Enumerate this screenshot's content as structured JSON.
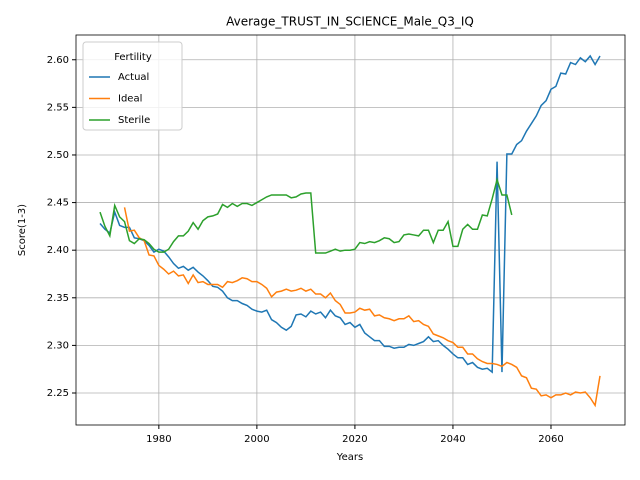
{
  "chart_data": {
    "type": "line",
    "title": "Average_TRUST_IN_SCIENCE_Male_Q3_IQ",
    "x_label": "Years",
    "y_label": "Score(1-3)",
    "x": [
      1968,
      1969,
      1970,
      1971,
      1972,
      1973,
      1974,
      1975,
      1976,
      1977,
      1978,
      1979,
      1980,
      1981,
      1982,
      1983,
      1984,
      1985,
      1986,
      1987,
      1988,
      1989,
      1990,
      1991,
      1992,
      1993,
      1994,
      1995,
      1996,
      1997,
      1998,
      1999,
      2000,
      2001,
      2002,
      2003,
      2004,
      2005,
      2006,
      2007,
      2008,
      2009,
      2010,
      2011,
      2012,
      2013,
      2014,
      2015,
      2016,
      2017,
      2018,
      2019,
      2020,
      2021,
      2022,
      2023,
      2024,
      2025,
      2026,
      2027,
      2028,
      2029,
      2030,
      2031,
      2032,
      2033,
      2034,
      2035,
      2036,
      2037,
      2038,
      2039,
      2040,
      2041,
      2042,
      2043,
      2044,
      2045,
      2046,
      2047,
      2048,
      2049,
      2050,
      2051,
      2052,
      2053,
      2054,
      2055,
      2056,
      2057,
      2058,
      2059,
      2060,
      2061,
      2062,
      2063,
      2064,
      2065,
      2066,
      2067,
      2068,
      2069,
      2070
    ],
    "series": [
      {
        "name": "Actual",
        "color": "#1f77b4",
        "values": [
          2.428,
          2.422,
          2.418,
          2.44,
          2.426,
          2.424,
          2.424,
          2.413,
          2.412,
          2.41,
          2.405,
          2.398,
          2.401,
          2.399,
          2.393,
          2.386,
          2.381,
          2.383,
          2.379,
          2.382,
          2.377,
          2.373,
          2.368,
          2.362,
          2.361,
          2.357,
          2.35,
          2.347,
          2.347,
          2.344,
          2.342,
          2.338,
          2.336,
          2.335,
          2.337,
          2.327,
          2.324,
          2.319,
          2.316,
          2.32,
          2.332,
          2.333,
          2.33,
          2.336,
          2.333,
          2.335,
          2.329,
          2.337,
          2.331,
          2.329,
          2.322,
          2.324,
          2.319,
          2.322,
          2.313,
          2.309,
          2.305,
          2.305,
          2.299,
          2.299,
          2.297,
          2.298,
          2.298,
          2.301,
          2.3,
          2.302,
          2.304,
          2.309,
          2.304,
          2.305,
          2.3,
          2.296,
          2.291,
          2.287,
          2.287,
          2.28,
          2.282,
          2.277,
          2.275,
          2.276,
          2.272,
          2.493,
          2.272,
          2.501,
          2.501,
          2.511,
          2.515,
          2.525,
          2.533,
          2.541,
          2.552,
          2.557,
          2.569,
          2.572,
          2.586,
          2.585,
          2.597,
          2.595,
          2.602,
          2.598,
          2.604,
          2.595,
          2.604
        ]
      },
      {
        "name": "Ideal",
        "color": "#ff7f0e",
        "values": [
          null,
          null,
          null,
          null,
          null,
          2.445,
          2.42,
          2.421,
          2.413,
          2.41,
          2.395,
          2.394,
          2.384,
          2.38,
          2.375,
          2.378,
          2.373,
          2.374,
          2.365,
          2.374,
          2.366,
          2.367,
          2.364,
          2.364,
          2.364,
          2.361,
          2.367,
          2.366,
          2.368,
          2.371,
          2.37,
          2.367,
          2.367,
          2.364,
          2.36,
          2.351,
          2.356,
          2.357,
          2.359,
          2.357,
          2.358,
          2.36,
          2.357,
          2.359,
          2.354,
          2.354,
          2.35,
          2.355,
          2.347,
          2.343,
          2.334,
          2.334,
          2.335,
          2.339,
          2.337,
          2.338,
          2.331,
          2.332,
          2.329,
          2.328,
          2.326,
          2.328,
          2.328,
          2.331,
          2.325,
          2.326,
          2.322,
          2.32,
          2.312,
          2.31,
          2.308,
          2.305,
          2.303,
          2.298,
          2.298,
          2.291,
          2.291,
          2.286,
          2.283,
          2.281,
          2.281,
          2.28,
          2.278,
          2.282,
          2.28,
          2.277,
          2.268,
          2.266,
          2.255,
          2.254,
          2.247,
          2.248,
          2.245,
          2.248,
          2.248,
          2.25,
          2.248,
          2.251,
          2.25,
          2.251,
          2.245,
          2.237,
          2.268
        ]
      },
      {
        "name": "Sterile",
        "color": "#2ca02c",
        "values": [
          2.44,
          2.425,
          2.415,
          2.447,
          2.435,
          2.43,
          2.41,
          2.407,
          2.412,
          2.411,
          2.407,
          2.401,
          2.398,
          2.398,
          2.401,
          2.409,
          2.415,
          2.415,
          2.42,
          2.429,
          2.422,
          2.431,
          2.435,
          2.436,
          2.438,
          2.448,
          2.445,
          2.449,
          2.446,
          2.449,
          2.449,
          2.447,
          2.45,
          2.453,
          2.456,
          2.458,
          2.458,
          2.458,
          2.458,
          2.455,
          2.456,
          2.459,
          2.46,
          2.46,
          2.397,
          2.397,
          2.397,
          2.399,
          2.401,
          2.399,
          2.4,
          2.4,
          2.401,
          2.408,
          2.407,
          2.409,
          2.408,
          2.41,
          2.413,
          2.412,
          2.408,
          2.409,
          2.416,
          2.417,
          2.416,
          2.415,
          2.421,
          2.421,
          2.408,
          2.421,
          2.421,
          2.43,
          2.404,
          2.404,
          2.422,
          2.427,
          2.422,
          2.422,
          2.437,
          2.436,
          2.454,
          2.474,
          2.458,
          2.458,
          2.437,
          null,
          null,
          null,
          null,
          null,
          null,
          null,
          null,
          null,
          null,
          null,
          null,
          null,
          null,
          null,
          null,
          null,
          null
        ]
      }
    ],
    "xlim": [
      1963.1,
      2075.1
    ],
    "ylim": [
      2.2164,
      2.626
    ],
    "xticks": [
      1980,
      2000,
      2020,
      2040,
      2060
    ],
    "yticks": [
      2.25,
      {
        "value": 2.3,
        "label": "2.30"
      },
      2.35,
      {
        "value": 2.4,
        "label": "2.40"
      },
      2.45,
      {
        "value": 2.5,
        "label": "2.50"
      },
      2.55,
      {
        "value": 2.6,
        "label": "2.60"
      }
    ],
    "grid": true,
    "legend_title": "Fertility",
    "legend_position": "upper left"
  }
}
